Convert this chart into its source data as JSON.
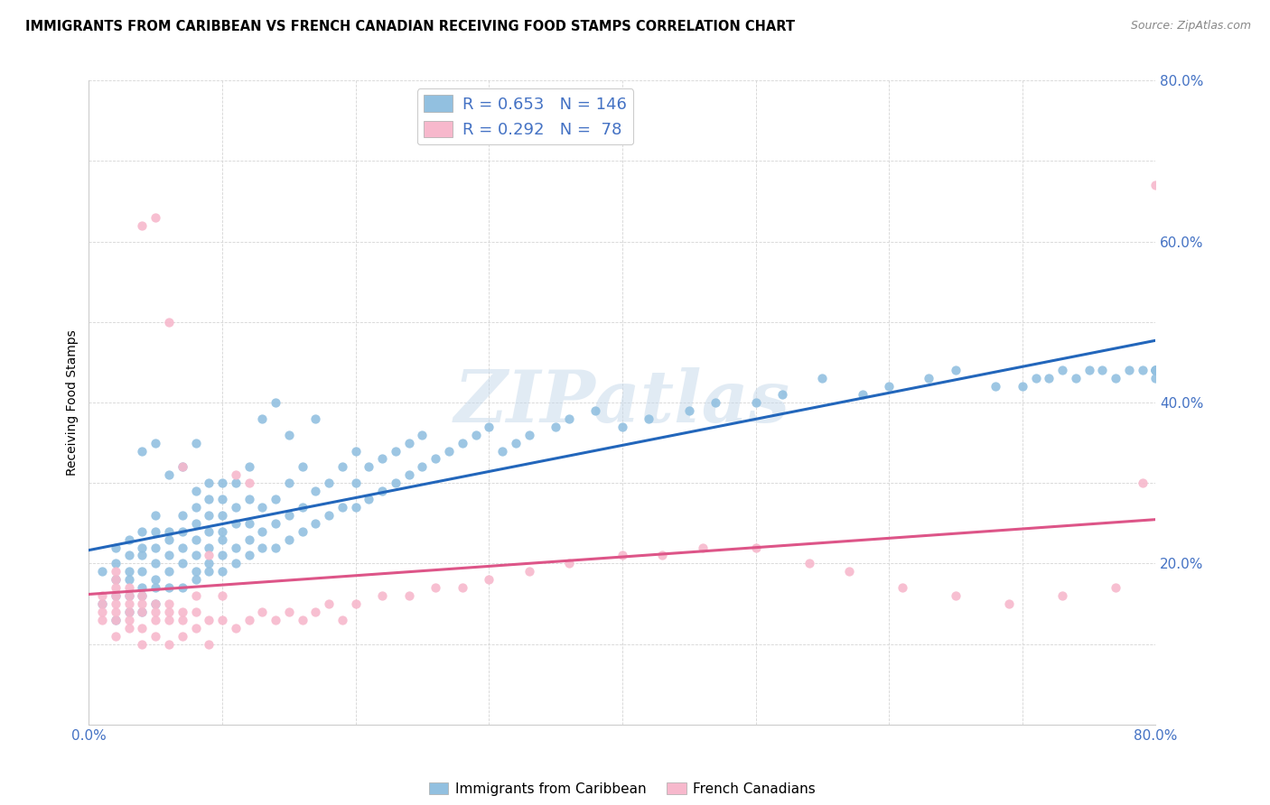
{
  "title": "IMMIGRANTS FROM CARIBBEAN VS FRENCH CANADIAN RECEIVING FOOD STAMPS CORRELATION CHART",
  "source": "Source: ZipAtlas.com",
  "ylabel": "Receiving Food Stamps",
  "xlim": [
    0.0,
    0.8
  ],
  "ylim": [
    0.0,
    0.8
  ],
  "xticks": [
    0.0,
    0.1,
    0.2,
    0.3,
    0.4,
    0.5,
    0.6,
    0.7,
    0.8
  ],
  "yticks": [
    0.0,
    0.1,
    0.2,
    0.3,
    0.4,
    0.5,
    0.6,
    0.7,
    0.8
  ],
  "blue_R": 0.653,
  "blue_N": 146,
  "pink_R": 0.292,
  "pink_N": 78,
  "blue_color": "#92c0e0",
  "pink_color": "#f7b8cc",
  "blue_line_color": "#2266bb",
  "pink_line_color": "#dd5588",
  "watermark": "ZIPatlas",
  "legend_label_blue": "Immigrants from Caribbean",
  "legend_label_pink": "French Canadians",
  "blue_scatter_x": [
    0.01,
    0.01,
    0.02,
    0.02,
    0.02,
    0.02,
    0.02,
    0.03,
    0.03,
    0.03,
    0.03,
    0.03,
    0.03,
    0.04,
    0.04,
    0.04,
    0.04,
    0.04,
    0.04,
    0.04,
    0.04,
    0.05,
    0.05,
    0.05,
    0.05,
    0.05,
    0.05,
    0.05,
    0.05,
    0.06,
    0.06,
    0.06,
    0.06,
    0.06,
    0.06,
    0.07,
    0.07,
    0.07,
    0.07,
    0.07,
    0.07,
    0.08,
    0.08,
    0.08,
    0.08,
    0.08,
    0.08,
    0.08,
    0.08,
    0.09,
    0.09,
    0.09,
    0.09,
    0.09,
    0.09,
    0.09,
    0.1,
    0.1,
    0.1,
    0.1,
    0.1,
    0.1,
    0.1,
    0.11,
    0.11,
    0.11,
    0.11,
    0.11,
    0.12,
    0.12,
    0.12,
    0.12,
    0.12,
    0.13,
    0.13,
    0.13,
    0.13,
    0.14,
    0.14,
    0.14,
    0.14,
    0.15,
    0.15,
    0.15,
    0.15,
    0.16,
    0.16,
    0.16,
    0.17,
    0.17,
    0.17,
    0.18,
    0.18,
    0.19,
    0.19,
    0.2,
    0.2,
    0.2,
    0.21,
    0.21,
    0.22,
    0.22,
    0.23,
    0.23,
    0.24,
    0.24,
    0.25,
    0.25,
    0.26,
    0.27,
    0.28,
    0.29,
    0.3,
    0.31,
    0.32,
    0.33,
    0.35,
    0.36,
    0.38,
    0.4,
    0.42,
    0.45,
    0.47,
    0.5,
    0.52,
    0.55,
    0.58,
    0.6,
    0.63,
    0.65,
    0.68,
    0.7,
    0.71,
    0.72,
    0.73,
    0.74,
    0.75,
    0.76,
    0.77,
    0.78,
    0.79,
    0.8,
    0.8,
    0.8,
    0.8,
    0.8
  ],
  "blue_scatter_y": [
    0.15,
    0.19,
    0.13,
    0.16,
    0.18,
    0.2,
    0.22,
    0.14,
    0.16,
    0.18,
    0.19,
    0.21,
    0.23,
    0.14,
    0.16,
    0.17,
    0.19,
    0.21,
    0.22,
    0.24,
    0.34,
    0.15,
    0.17,
    0.18,
    0.2,
    0.22,
    0.24,
    0.26,
    0.35,
    0.17,
    0.19,
    0.21,
    0.23,
    0.24,
    0.31,
    0.17,
    0.2,
    0.22,
    0.24,
    0.26,
    0.32,
    0.18,
    0.19,
    0.21,
    0.23,
    0.25,
    0.27,
    0.29,
    0.35,
    0.19,
    0.2,
    0.22,
    0.24,
    0.26,
    0.28,
    0.3,
    0.19,
    0.21,
    0.23,
    0.24,
    0.26,
    0.28,
    0.3,
    0.2,
    0.22,
    0.25,
    0.27,
    0.3,
    0.21,
    0.23,
    0.25,
    0.28,
    0.32,
    0.22,
    0.24,
    0.27,
    0.38,
    0.22,
    0.25,
    0.28,
    0.4,
    0.23,
    0.26,
    0.3,
    0.36,
    0.24,
    0.27,
    0.32,
    0.25,
    0.29,
    0.38,
    0.26,
    0.3,
    0.27,
    0.32,
    0.27,
    0.3,
    0.34,
    0.28,
    0.32,
    0.29,
    0.33,
    0.3,
    0.34,
    0.31,
    0.35,
    0.32,
    0.36,
    0.33,
    0.34,
    0.35,
    0.36,
    0.37,
    0.34,
    0.35,
    0.36,
    0.37,
    0.38,
    0.39,
    0.37,
    0.38,
    0.39,
    0.4,
    0.4,
    0.41,
    0.43,
    0.41,
    0.42,
    0.43,
    0.44,
    0.42,
    0.42,
    0.43,
    0.43,
    0.44,
    0.43,
    0.44,
    0.44,
    0.43,
    0.44,
    0.44,
    0.43,
    0.44,
    0.44,
    0.44,
    0.44
  ],
  "pink_scatter_x": [
    0.01,
    0.01,
    0.01,
    0.01,
    0.02,
    0.02,
    0.02,
    0.02,
    0.02,
    0.02,
    0.02,
    0.02,
    0.03,
    0.03,
    0.03,
    0.03,
    0.03,
    0.03,
    0.04,
    0.04,
    0.04,
    0.04,
    0.04,
    0.04,
    0.05,
    0.05,
    0.05,
    0.05,
    0.05,
    0.06,
    0.06,
    0.06,
    0.06,
    0.06,
    0.07,
    0.07,
    0.07,
    0.07,
    0.08,
    0.08,
    0.08,
    0.09,
    0.09,
    0.09,
    0.1,
    0.1,
    0.11,
    0.11,
    0.12,
    0.12,
    0.13,
    0.14,
    0.15,
    0.16,
    0.17,
    0.18,
    0.19,
    0.2,
    0.22,
    0.24,
    0.26,
    0.28,
    0.3,
    0.33,
    0.36,
    0.4,
    0.43,
    0.46,
    0.5,
    0.54,
    0.57,
    0.61,
    0.65,
    0.69,
    0.73,
    0.77,
    0.79,
    0.8
  ],
  "pink_scatter_y": [
    0.13,
    0.14,
    0.15,
    0.16,
    0.11,
    0.13,
    0.14,
    0.15,
    0.16,
    0.17,
    0.18,
    0.19,
    0.12,
    0.13,
    0.14,
    0.15,
    0.16,
    0.17,
    0.1,
    0.12,
    0.14,
    0.15,
    0.16,
    0.62,
    0.11,
    0.13,
    0.14,
    0.15,
    0.63,
    0.1,
    0.13,
    0.14,
    0.15,
    0.5,
    0.11,
    0.13,
    0.14,
    0.32,
    0.12,
    0.14,
    0.16,
    0.1,
    0.13,
    0.21,
    0.13,
    0.16,
    0.12,
    0.31,
    0.13,
    0.3,
    0.14,
    0.13,
    0.14,
    0.13,
    0.14,
    0.15,
    0.13,
    0.15,
    0.16,
    0.16,
    0.17,
    0.17,
    0.18,
    0.19,
    0.2,
    0.21,
    0.21,
    0.22,
    0.22,
    0.2,
    0.19,
    0.17,
    0.16,
    0.15,
    0.16,
    0.17,
    0.3,
    0.67
  ]
}
